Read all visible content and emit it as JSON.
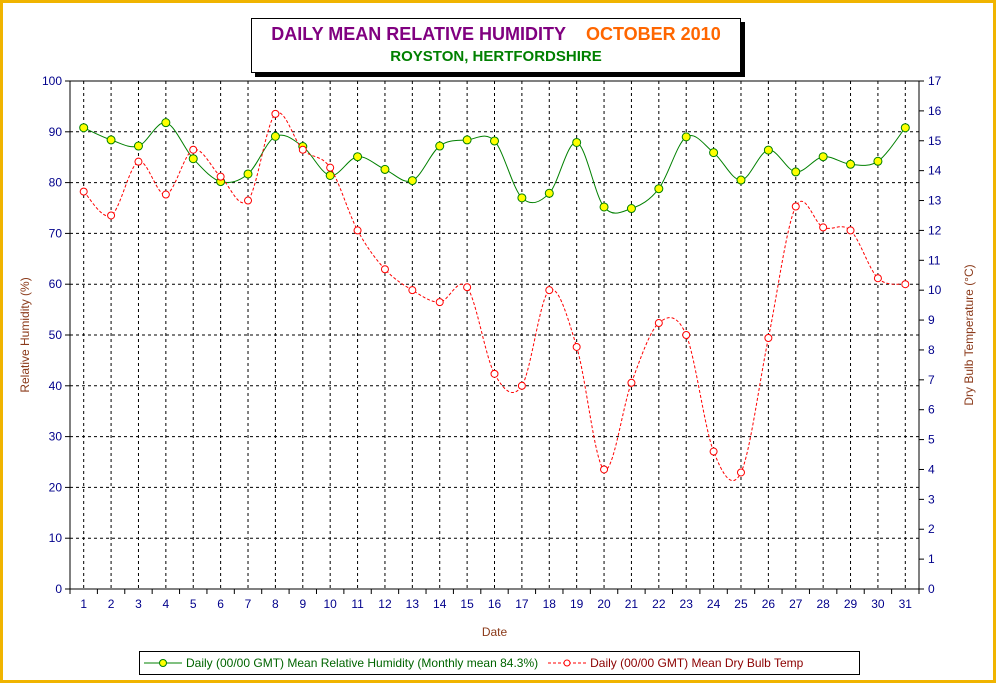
{
  "title": {
    "main": "DAILY MEAN RELATIVE HUMIDITY",
    "period": "OCTOBER 2010",
    "location": "ROYSTON, HERTFORDSHIRE"
  },
  "chart_data": {
    "type": "line",
    "title": "DAILY MEAN RELATIVE HUMIDITY OCTOBER 2010",
    "subtitle": "ROYSTON, HERTFORDSHIRE",
    "xlabel": "Date",
    "ylabel": "Relative Humidity (%)",
    "y2label": "Dry Bulb Temperature (°C)",
    "ylim": [
      0,
      100
    ],
    "y2lim": [
      0,
      17
    ],
    "yticks": [
      0,
      10,
      20,
      30,
      40,
      50,
      60,
      70,
      80,
      90,
      100
    ],
    "y2ticks": [
      0,
      1,
      2,
      3,
      4,
      5,
      6,
      7,
      8,
      9,
      10,
      11,
      12,
      13,
      14,
      15,
      16,
      17
    ],
    "x": [
      1,
      2,
      3,
      4,
      5,
      6,
      7,
      8,
      9,
      10,
      11,
      12,
      13,
      14,
      15,
      16,
      17,
      18,
      19,
      20,
      21,
      22,
      23,
      24,
      25,
      26,
      27,
      28,
      29,
      30,
      31
    ],
    "grid": true,
    "legend_position": "bottom",
    "series": [
      {
        "name": "Daily (00/00 GMT) Mean Relative Humidity (Monthly mean 84.3%)",
        "axis": "left",
        "color": "#008000",
        "marker_fill": "#ffff00",
        "values": [
          90.8,
          88.4,
          87.2,
          91.8,
          84.7,
          80.2,
          81.7,
          89.1,
          87.1,
          81.4,
          85.1,
          82.6,
          80.4,
          87.2,
          88.4,
          88.2,
          77.0,
          77.9,
          87.9,
          75.2,
          74.9,
          78.8,
          89.0,
          85.9,
          80.5,
          86.4,
          82.1,
          85.1,
          83.6,
          84.2,
          90.8
        ]
      },
      {
        "name": "Daily (00/00 GMT) Mean Dry Bulb Temp",
        "axis": "right",
        "color": "#ff0000",
        "marker_fill": "#ffffff",
        "values": [
          13.3,
          12.5,
          14.3,
          13.2,
          14.7,
          13.8,
          13.0,
          15.9,
          14.7,
          14.1,
          12.0,
          10.7,
          10.0,
          9.6,
          10.1,
          7.2,
          6.8,
          10.0,
          8.1,
          4.0,
          6.9,
          8.9,
          8.5,
          4.6,
          3.9,
          8.4,
          12.8,
          12.1,
          12.0,
          10.4,
          10.2
        ]
      }
    ]
  },
  "legend": {
    "rh_label": "Daily (00/00 GMT) Mean Relative Humidity (Monthly mean 84.3%)",
    "temp_label": "Daily (00/00 GMT) Mean Dry Bulb Temp"
  }
}
